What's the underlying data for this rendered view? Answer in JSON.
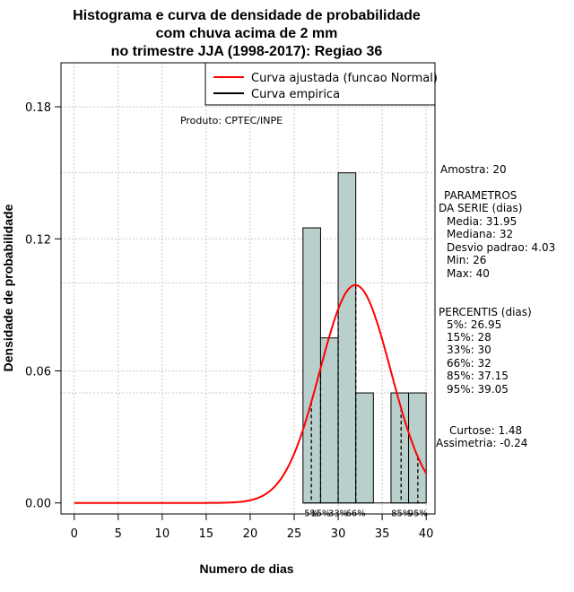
{
  "chart_data": {
    "type": "histogram",
    "title_lines": [
      "Histograma e curva de densidade de probabilidade",
      "com chuva acima de 2 mm",
      "no trimestre JJA (1998-2017): Regiao 36"
    ],
    "xlabel": "Numero de dias",
    "ylabel": "Densidade de probabilidade",
    "xlim": [
      -1.5,
      41
    ],
    "ylim": [
      -0.005,
      0.2
    ],
    "x_ticks": [
      0,
      5,
      10,
      15,
      20,
      25,
      30,
      35,
      40
    ],
    "y_ticks": [
      0.0,
      0.06,
      0.12,
      0.18
    ],
    "y_tick_labels": [
      "0.00",
      "0.06",
      "0.12",
      "0.18"
    ],
    "bars": [
      {
        "x0": 26,
        "x1": 28,
        "density": 0.125
      },
      {
        "x0": 28,
        "x1": 30,
        "density": 0.075
      },
      {
        "x0": 30,
        "x1": 32,
        "density": 0.15
      },
      {
        "x0": 32,
        "x1": 34,
        "density": 0.05
      },
      {
        "x0": 34,
        "x1": 36,
        "density": 0.0
      },
      {
        "x0": 36,
        "x1": 38,
        "density": 0.05
      },
      {
        "x0": 38,
        "x1": 40,
        "density": 0.05
      }
    ],
    "bar_color": "#b9cfcc",
    "normal_curve": {
      "mean": 31.95,
      "sd": 4.03,
      "color": "#ff0000",
      "x_range": [
        0,
        40
      ]
    },
    "gridlines_y": [
      0.06,
      0.12,
      0.18
    ],
    "dotted_levels": [
      0.15,
      0.1,
      0.05
    ],
    "percentile_lines": [
      {
        "label": "5%",
        "x": 26.95
      },
      {
        "label": "15%",
        "x": 28
      },
      {
        "label": "33%",
        "x": 30
      },
      {
        "label": "66%",
        "x": 32
      },
      {
        "label": "85%",
        "x": 37.15
      },
      {
        "label": "95%",
        "x": 39.05
      }
    ],
    "legend": {
      "position": "top-right",
      "entries": [
        {
          "label": "Curva ajustada (funcao Normal)",
          "color": "#ff0000"
        },
        {
          "label": "Curva empirica",
          "color": "#000000"
        }
      ]
    },
    "annotation": "Produto: CPTEC/INPE",
    "stats": {
      "amostra": "Amostra: 20",
      "params_title_1": "PARAMETROS",
      "params_title_2": "DA SERIE (dias)",
      "media": "Media: 31.95",
      "mediana": "Mediana: 32",
      "desvio": "Desvio padrao: 4.03",
      "min": "Min: 26",
      "max": "Max: 40",
      "percentis_title": "PERCENTIS (dias)",
      "p5": "5%: 26.95",
      "p15": "15%: 28",
      "p33": "33%: 30",
      "p66": "66%: 32",
      "p85": "85%: 37.15",
      "p95": "95%: 39.05",
      "curtose": "Curtose: 1.48",
      "assimetria": "Assimetria: -0.24"
    }
  }
}
